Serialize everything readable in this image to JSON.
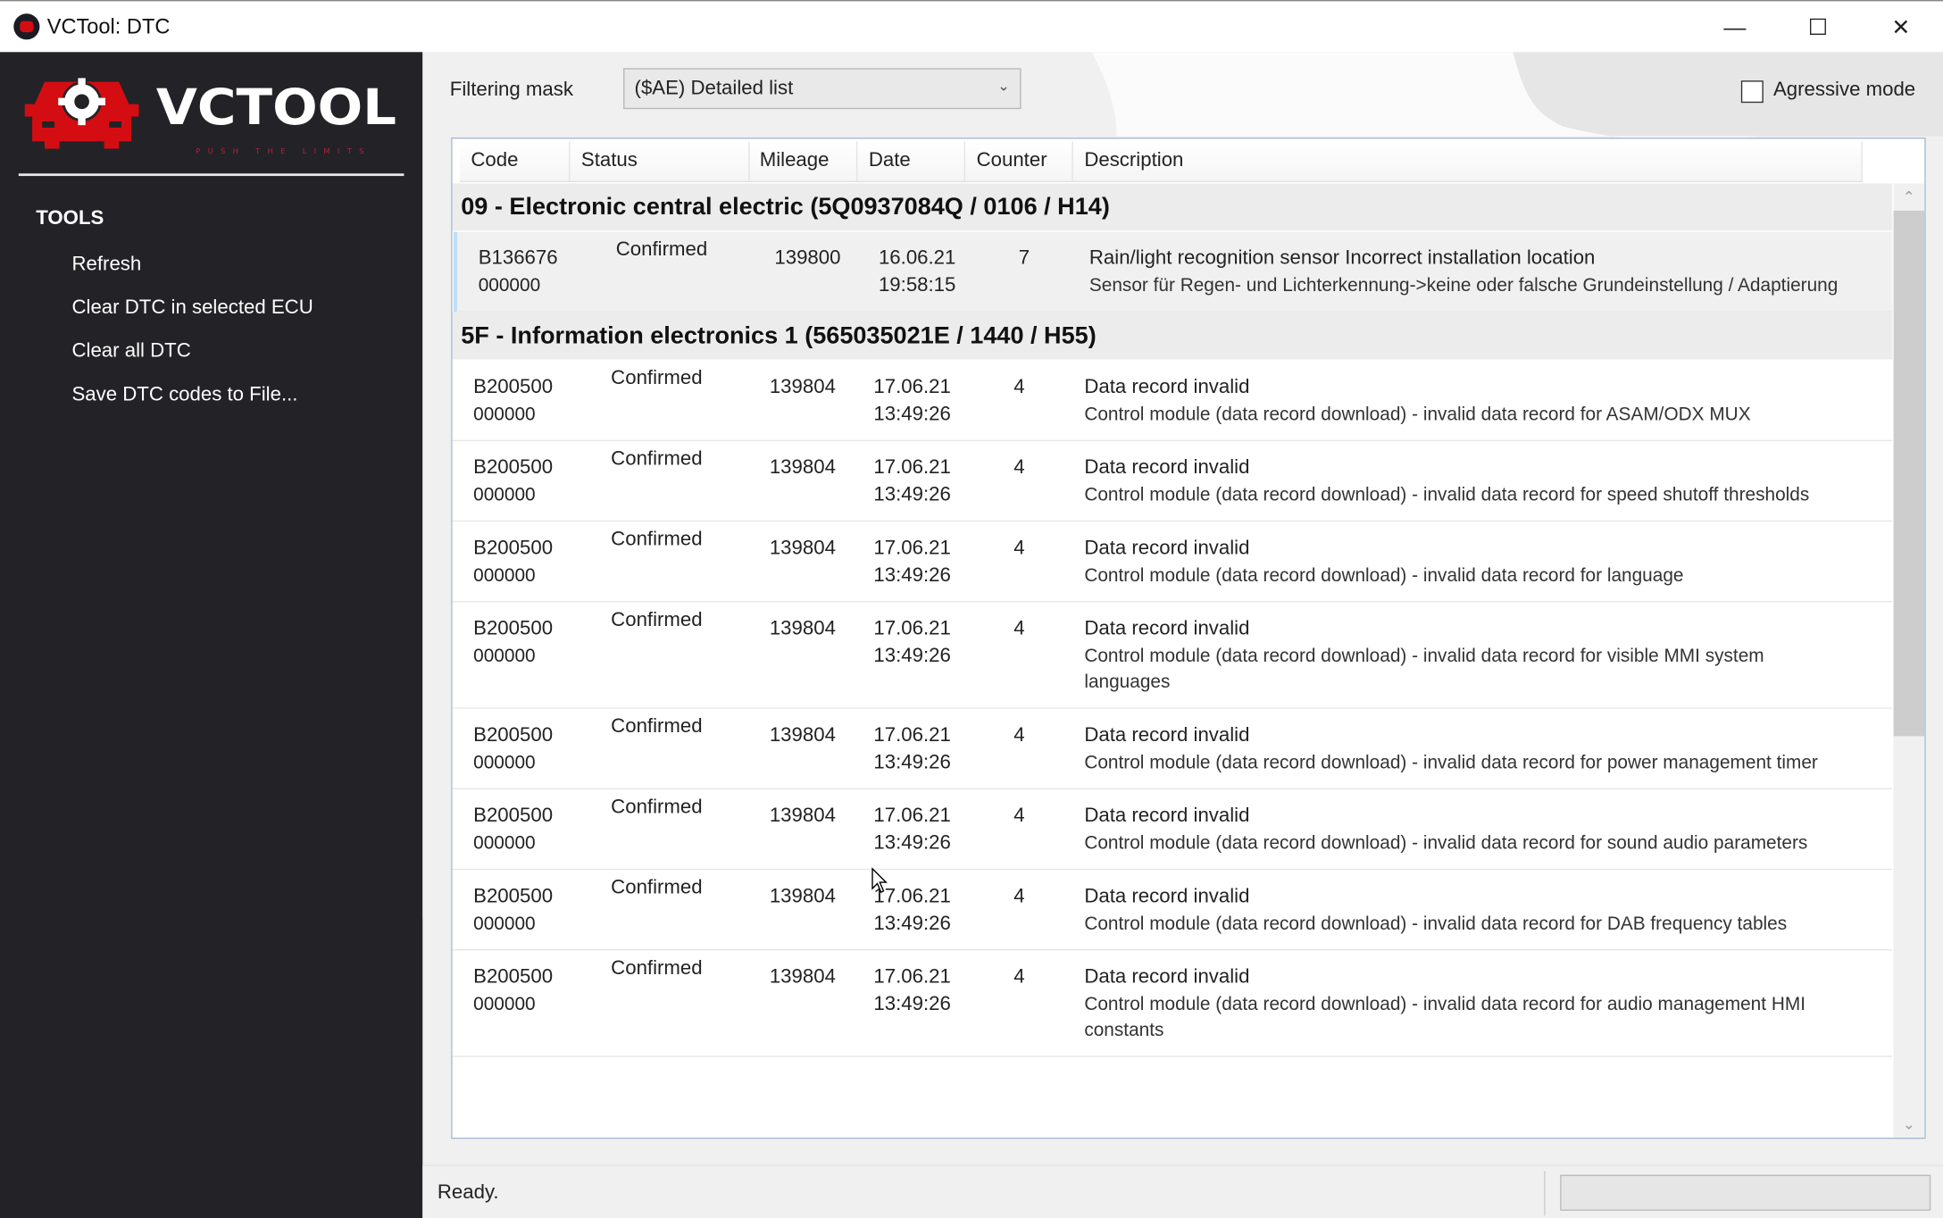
{
  "window": {
    "title": "VCTool: DTC",
    "minimize": "—",
    "maximize": "☐",
    "close": "✕"
  },
  "logo": {
    "text": "VCTOOL",
    "tagline": "PUSH THE LIMITS",
    "color": "#d40d12"
  },
  "sidebar": {
    "heading": "TOOLS",
    "items": [
      {
        "label": "Refresh"
      },
      {
        "label": "Clear DTC in selected ECU"
      },
      {
        "label": "Clear all DTC"
      },
      {
        "label": "Save DTC codes to File..."
      }
    ]
  },
  "toolbar": {
    "filter_label": "Filtering mask",
    "filter_value": "($AE) Detailed list",
    "aggressive_label": "Agressive mode",
    "aggressive_checked": false
  },
  "table": {
    "columns": [
      "Code",
      "Status",
      "Mileage",
      "Date",
      "Counter",
      "Description"
    ],
    "groups": [
      {
        "title": "09 - Electronic central electric (5Q0937084Q  / 0106 / H14)",
        "rows": [
          {
            "code": "B136676",
            "subcode": "000000",
            "status": "Confirmed",
            "mileage": "139800",
            "date": "16.06.21",
            "time": "19:58:15",
            "counter": "7",
            "title": "Rain/light recognition sensor Incorrect installation location",
            "detail": "Sensor für Regen- und Lichterkennung->keine oder falsche Grundeinstellung / Adaptierung"
          }
        ]
      },
      {
        "title": "5F - Information electronics 1 (565035021E  / 1440 / H55)",
        "rows": [
          {
            "code": "B200500",
            "subcode": "000000",
            "status": "Confirmed",
            "mileage": "139804",
            "date": "17.06.21",
            "time": "13:49:26",
            "counter": "4",
            "title": "Data record invalid",
            "detail": "Control module (data record download) - invalid data record for ASAM/ODX MUX"
          },
          {
            "code": "B200500",
            "subcode": "000000",
            "status": "Confirmed",
            "mileage": "139804",
            "date": "17.06.21",
            "time": "13:49:26",
            "counter": "4",
            "title": "Data record invalid",
            "detail": "Control module (data record download) - invalid data record for speed shutoff thresholds"
          },
          {
            "code": "B200500",
            "subcode": "000000",
            "status": "Confirmed",
            "mileage": "139804",
            "date": "17.06.21",
            "time": "13:49:26",
            "counter": "4",
            "title": "Data record invalid",
            "detail": "Control module (data record download) - invalid data record for language"
          },
          {
            "code": "B200500",
            "subcode": "000000",
            "status": "Confirmed",
            "mileage": "139804",
            "date": "17.06.21",
            "time": "13:49:26",
            "counter": "4",
            "title": "Data record invalid",
            "detail": "Control module (data record download) - invalid data record for visible MMI system languages"
          },
          {
            "code": "B200500",
            "subcode": "000000",
            "status": "Confirmed",
            "mileage": "139804",
            "date": "17.06.21",
            "time": "13:49:26",
            "counter": "4",
            "title": "Data record invalid",
            "detail": "Control module (data record download) - invalid data record for power management timer"
          },
          {
            "code": "B200500",
            "subcode": "000000",
            "status": "Confirmed",
            "mileage": "139804",
            "date": "17.06.21",
            "time": "13:49:26",
            "counter": "4",
            "title": "Data record invalid",
            "detail": "Control module (data record download) - invalid data record for sound audio parameters"
          },
          {
            "code": "B200500",
            "subcode": "000000",
            "status": "Confirmed",
            "mileage": "139804",
            "date": "17.06.21",
            "time": "13:49:26",
            "counter": "4",
            "title": "Data record invalid",
            "detail": "Control module (data record download) - invalid data record for DAB frequency tables"
          },
          {
            "code": "B200500",
            "subcode": "000000",
            "status": "Confirmed",
            "mileage": "139804",
            "date": "17.06.21",
            "time": "13:49:26",
            "counter": "4",
            "title": "Data record invalid",
            "detail": "Control module (data record download) - invalid data record for audio management HMI constants"
          }
        ]
      }
    ]
  },
  "statusbar": {
    "text": "Ready.",
    "progress": 0
  }
}
